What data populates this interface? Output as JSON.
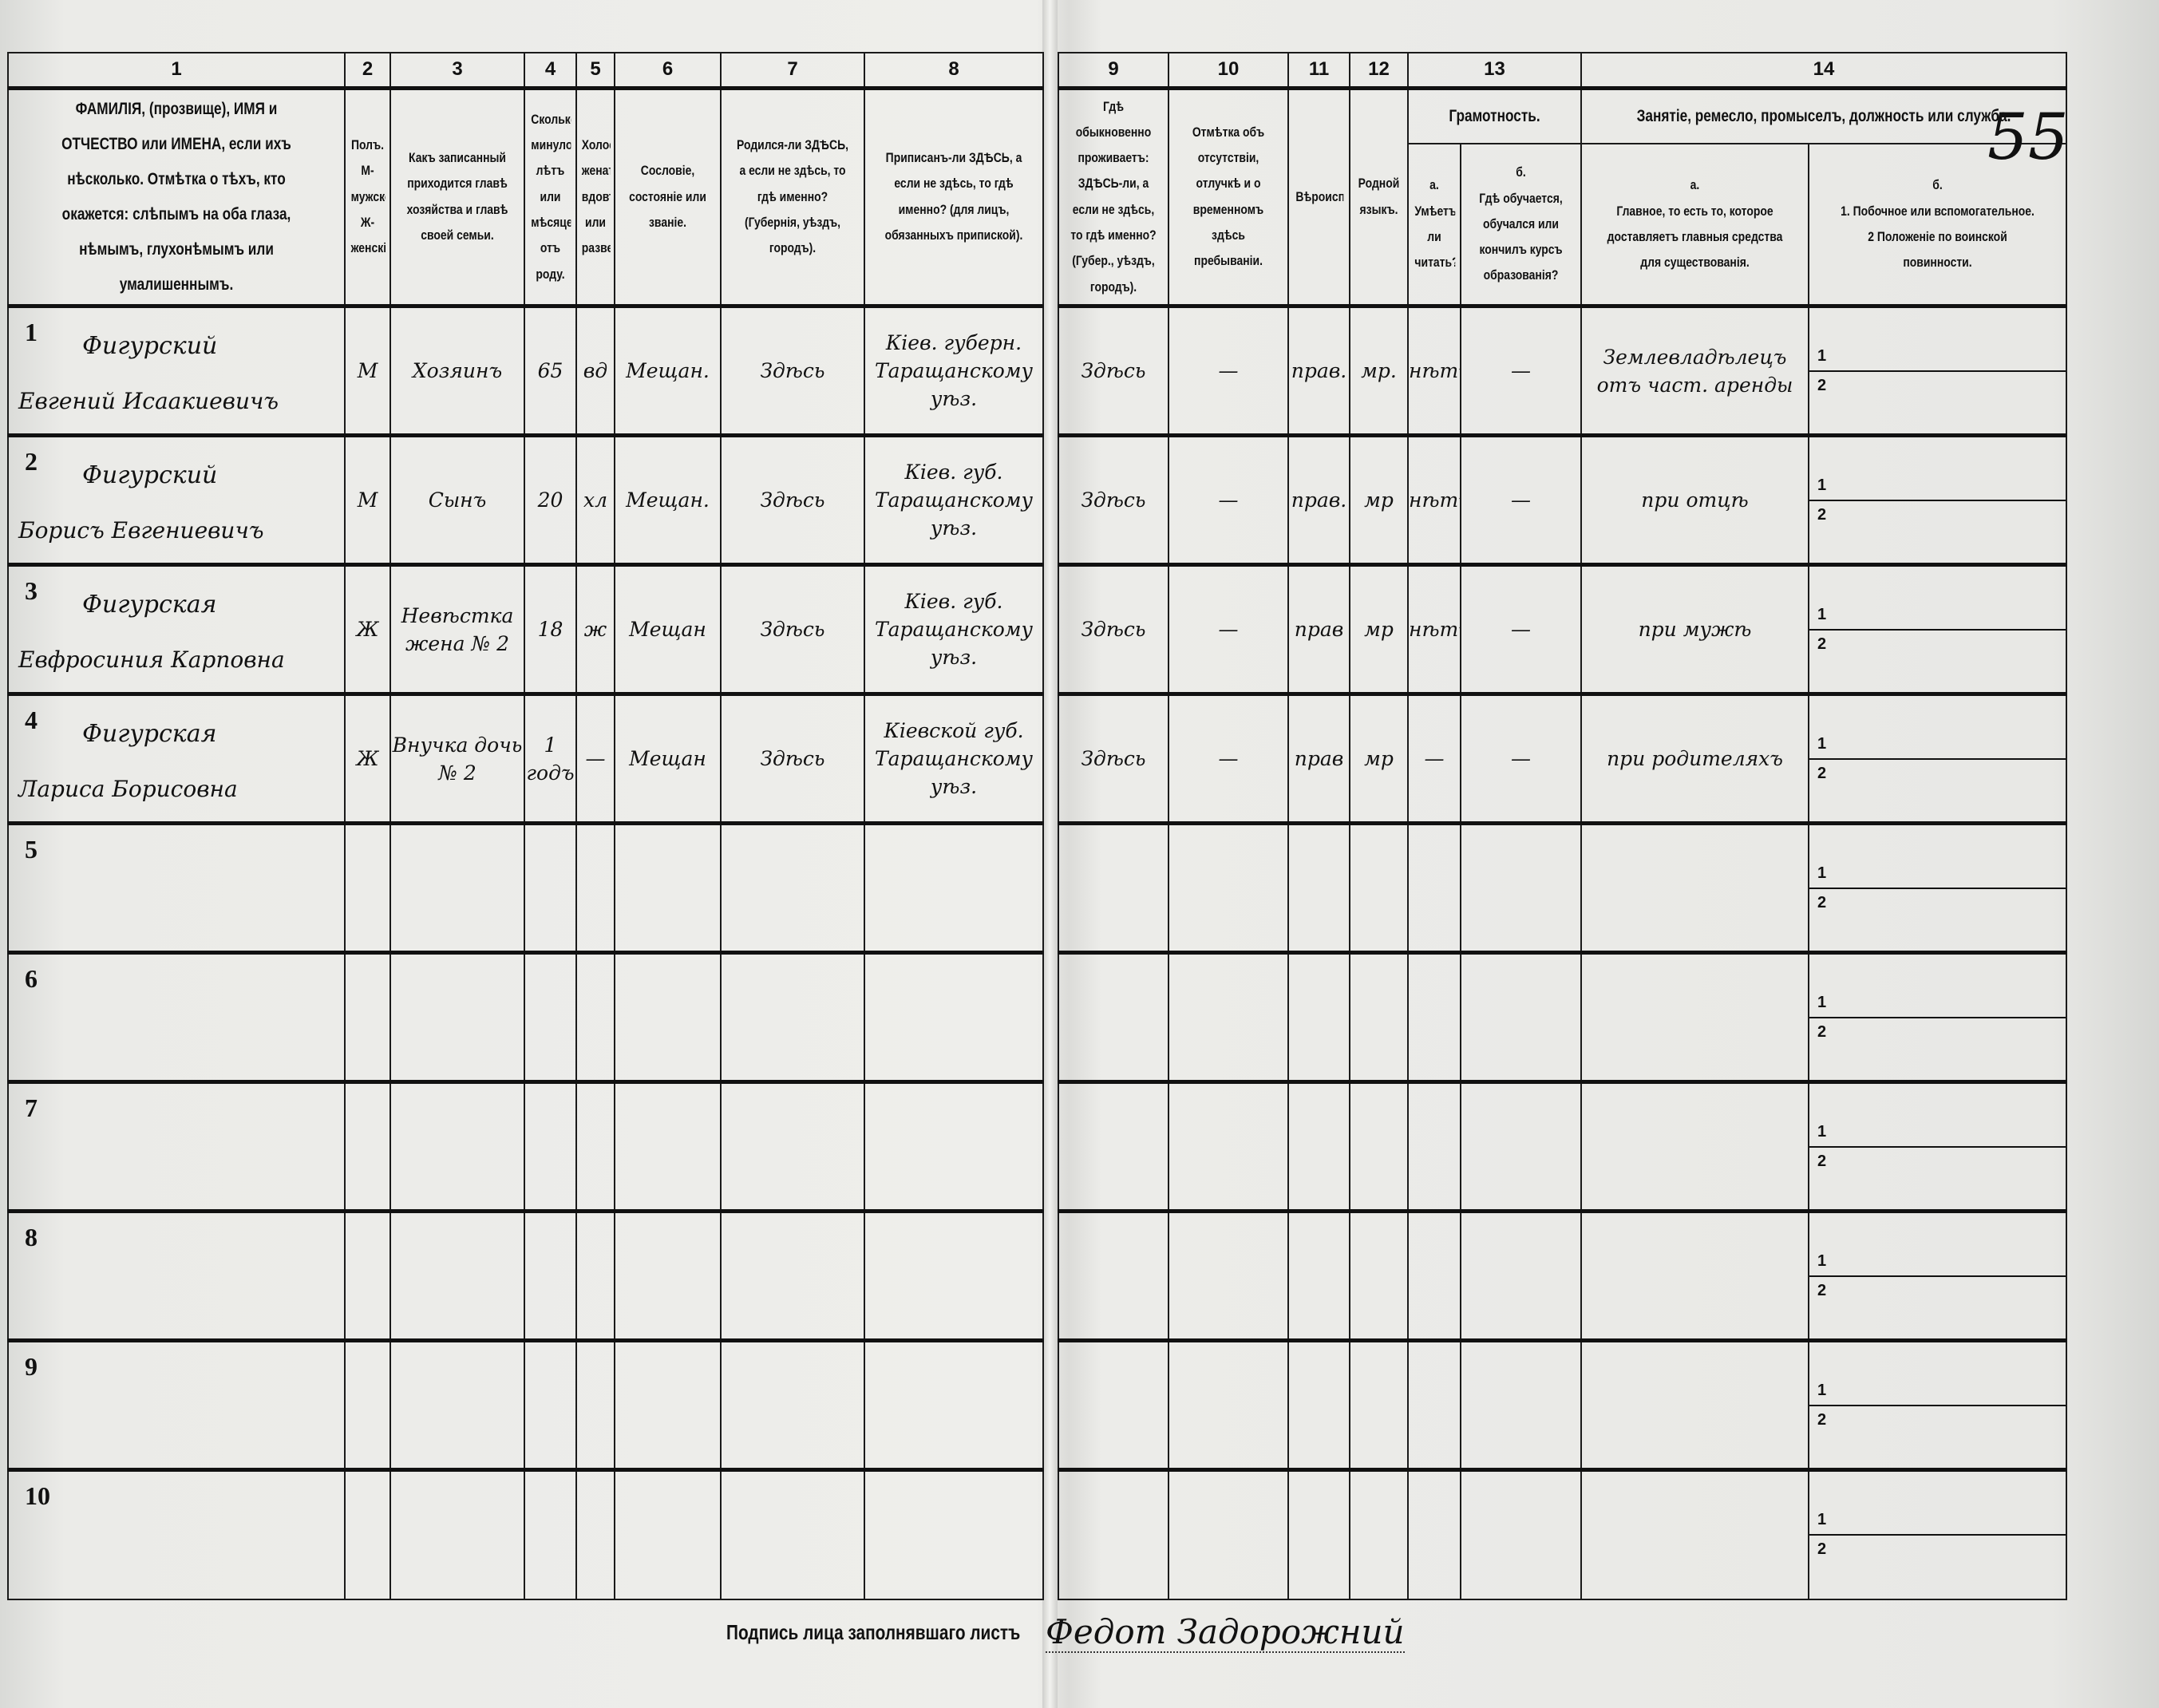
{
  "page_number": "55",
  "column_numbers": [
    "1",
    "2",
    "3",
    "4",
    "5",
    "6",
    "7",
    "8",
    "9",
    "10",
    "11",
    "12",
    "13",
    "14"
  ],
  "headers": {
    "c1": "ФАМИЛІЯ, (прозвище), ИМЯ и ОТЧЕСТВО или ИМЕНА, если ихъ нѣсколько. Отмѣтка о тѣхъ, кто окажется: слѣпымъ на оба глаза, нѣмымъ, глухонѣмымъ или умалишеннымъ.",
    "c2": "Полъ. М-мужской. Ж-женскій.",
    "c3": "Какъ записанный приходится главѣ хозяйства и главѣ своей семьи.",
    "c4": "Сколько минуло лѣтъ или мѣсяцевъ отъ роду.",
    "c5": "Холостъ, женатъ, вдовъ или разведенъ.",
    "c6": "Сословіе, состояніе или званіе.",
    "c7": "Родился-ли ЗДѢСЬ, а если не здѣсь, то гдѣ именно? (Губернія, уѣздъ, городъ).",
    "c8": "Приписанъ-ли ЗДѢСЬ, а если не здѣсь, то гдѣ именно? (для лицъ, обязанныхъ припиской).",
    "c9": "Гдѣ обыкновенно проживаетъ: ЗДѢСЬ-ли, а если не здѣсь, то гдѣ именно? (Губер., уѣздъ, городъ).",
    "c10": "Отмѣтка объ отсутствіи, отлучкѣ и о временномъ здѣсь пребываніи.",
    "c11": "Вѣроисповѣданіе.",
    "c12": "Родной языкъ.",
    "c13": "Грамотность.",
    "c13a_letter": "а.",
    "c13a": "Умѣетъ-ли читать?",
    "c13b_letter": "б.",
    "c13b": "Гдѣ обучается, обучался или кончилъ курсъ образованія?",
    "c14": "Занятіе, ремесло, промыселъ, должность или служба.",
    "c14a_letter": "а.",
    "c14a": "Главное, то есть то, которое доставляетъ главныя средства для существованія.",
    "c14b_letter": "б.",
    "c14b1": "1. Побочное или вспомогательное.",
    "c14b2": "2 Положеніе по воинской повинности."
  },
  "rows": [
    {
      "n": "1",
      "surname": "Фигурский",
      "name": "Евгений Исаакиевичъ",
      "sex": "М",
      "relation": "Хозяинъ",
      "age": "65",
      "marital": "вд",
      "estate": "Мещан.",
      "born": "Здѣсь",
      "registered": "Кiев. губерн. Таращанскому уѣз.",
      "resides": "Здѣсь",
      "absence": "—",
      "religion": "прав.",
      "language": "мр.",
      "literate": "нѣтъ",
      "education": "—",
      "occupation": "Землевладѣлецъ отъ част. аренды",
      "sub1": "1",
      "sub2": "2"
    },
    {
      "n": "2",
      "surname": "Фигурский",
      "name": "Борисъ Евгениевичъ",
      "sex": "М",
      "relation": "Сынъ",
      "age": "20",
      "marital": "хл",
      "estate": "Мещан.",
      "born": "Здѣсь",
      "registered": "Кiев. губ. Таращанскому уѣз.",
      "resides": "Здѣсь",
      "absence": "—",
      "religion": "прав.",
      "language": "мр",
      "literate": "нѣтъ",
      "education": "—",
      "occupation": "при отцѣ",
      "sub1": "1",
      "sub2": "2"
    },
    {
      "n": "3",
      "surname": "Фигурская",
      "name": "Евфросиния Карповна",
      "sex": "Ж",
      "relation": "Невѣстка жена № 2",
      "age": "18",
      "marital": "ж",
      "estate": "Мещан",
      "born": "Здѣсь",
      "registered": "Кiев. губ. Таращанскому уѣз.",
      "resides": "Здѣсь",
      "absence": "—",
      "religion": "прав",
      "language": "мр",
      "literate": "нѣтъ",
      "education": "—",
      "occupation": "при мужѣ",
      "sub1": "1",
      "sub2": "2"
    },
    {
      "n": "4",
      "surname": "Фигурская",
      "name": "Ларисa Борисовна",
      "sex": "Ж",
      "relation": "Внучка дочь № 2",
      "age": "1 годъ",
      "marital": "—",
      "estate": "Мещан",
      "born": "Здѣсь",
      "registered": "Кiевской губ. Таращанскому уѣз.",
      "resides": "Здѣсь",
      "absence": "—",
      "religion": "прав",
      "language": "мр",
      "literate": "—",
      "education": "—",
      "occupation": "при родителяхъ",
      "sub1": "1",
      "sub2": "2"
    },
    {
      "n": "5",
      "sub1": "1",
      "sub2": "2"
    },
    {
      "n": "6",
      "sub1": "1",
      "sub2": "2"
    },
    {
      "n": "7",
      "sub1": "1",
      "sub2": "2"
    },
    {
      "n": "8",
      "sub1": "1",
      "sub2": "2"
    },
    {
      "n": "9",
      "sub1": "1",
      "sub2": "2"
    },
    {
      "n": "10",
      "sub1": "1",
      "sub2": "2"
    }
  ],
  "footer": {
    "label": "Подпись лица заполнявшаго листъ",
    "signature": "Федот Задорожний"
  }
}
